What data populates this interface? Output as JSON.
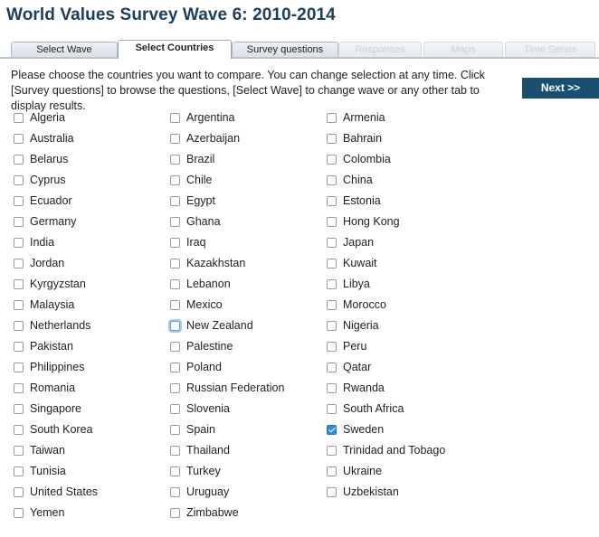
{
  "page": {
    "title": "World Values Survey Wave 6: 2010-2014"
  },
  "tabs": [
    {
      "label": "Select Wave",
      "state": "normal"
    },
    {
      "label": "Select Countries",
      "state": "active"
    },
    {
      "label": "Survey questions",
      "state": "normal"
    },
    {
      "label": "Responses",
      "state": "disabled"
    },
    {
      "label": "Maps",
      "state": "disabled"
    },
    {
      "label": "Time Series",
      "state": "disabled"
    }
  ],
  "instructions": "Please choose the countries you want to compare. You can change selection at any time. Click [Survey questions] to browse the questions, [Select Wave] to change wave or any other tab to display results.",
  "next_label": "Next >>",
  "countries": {
    "column1": [
      {
        "name": "Algeria",
        "checked": false
      },
      {
        "name": "Australia",
        "checked": false
      },
      {
        "name": "Belarus",
        "checked": false
      },
      {
        "name": "Cyprus",
        "checked": false
      },
      {
        "name": "Ecuador",
        "checked": false
      },
      {
        "name": "Germany",
        "checked": false
      },
      {
        "name": "India",
        "checked": false
      },
      {
        "name": "Jordan",
        "checked": false
      },
      {
        "name": "Kyrgyzstan",
        "checked": false
      },
      {
        "name": "Malaysia",
        "checked": false
      },
      {
        "name": "Netherlands",
        "checked": false
      },
      {
        "name": "Pakistan",
        "checked": false
      },
      {
        "name": "Philippines",
        "checked": false
      },
      {
        "name": "Romania",
        "checked": false
      },
      {
        "name": "Singapore",
        "checked": false
      },
      {
        "name": "South Korea",
        "checked": false
      },
      {
        "name": "Taiwan",
        "checked": false
      },
      {
        "name": "Tunisia",
        "checked": false
      },
      {
        "name": "United States",
        "checked": false
      },
      {
        "name": "Yemen",
        "checked": false
      }
    ],
    "column2": [
      {
        "name": "Argentina",
        "checked": false
      },
      {
        "name": "Azerbaijan",
        "checked": false
      },
      {
        "name": "Brazil",
        "checked": false
      },
      {
        "name": "Chile",
        "checked": false
      },
      {
        "name": "Egypt",
        "checked": false
      },
      {
        "name": "Ghana",
        "checked": false
      },
      {
        "name": "Iraq",
        "checked": false
      },
      {
        "name": "Kazakhstan",
        "checked": false
      },
      {
        "name": "Lebanon",
        "checked": false
      },
      {
        "name": "Mexico",
        "checked": false
      },
      {
        "name": "New Zealand",
        "checked": false,
        "focused": true
      },
      {
        "name": "Palestine",
        "checked": false
      },
      {
        "name": "Poland",
        "checked": false
      },
      {
        "name": "Russian Federation",
        "checked": false
      },
      {
        "name": "Slovenia",
        "checked": false
      },
      {
        "name": "Spain",
        "checked": false
      },
      {
        "name": "Thailand",
        "checked": false
      },
      {
        "name": "Turkey",
        "checked": false
      },
      {
        "name": "Uruguay",
        "checked": false
      },
      {
        "name": "Zimbabwe",
        "checked": false
      }
    ],
    "column3": [
      {
        "name": "Armenia",
        "checked": false
      },
      {
        "name": "Bahrain",
        "checked": false
      },
      {
        "name": "Colombia",
        "checked": false
      },
      {
        "name": "China",
        "checked": false
      },
      {
        "name": "Estonia",
        "checked": false
      },
      {
        "name": "Hong Kong",
        "checked": false
      },
      {
        "name": "Japan",
        "checked": false
      },
      {
        "name": "Kuwait",
        "checked": false
      },
      {
        "name": "Libya",
        "checked": false
      },
      {
        "name": "Morocco",
        "checked": false
      },
      {
        "name": "Nigeria",
        "checked": false
      },
      {
        "name": "Peru",
        "checked": false
      },
      {
        "name": "Qatar",
        "checked": false
      },
      {
        "name": "Rwanda",
        "checked": false
      },
      {
        "name": "South Africa",
        "checked": false
      },
      {
        "name": "Sweden",
        "checked": true
      },
      {
        "name": "Trinidad and Tobago",
        "checked": false
      },
      {
        "name": "Ukraine",
        "checked": false
      },
      {
        "name": "Uzbekistan",
        "checked": false
      }
    ]
  },
  "colors": {
    "title": "#1d3f5e",
    "next_button": "#1b4f72",
    "checkbox_checked": "#2f8ae6"
  }
}
